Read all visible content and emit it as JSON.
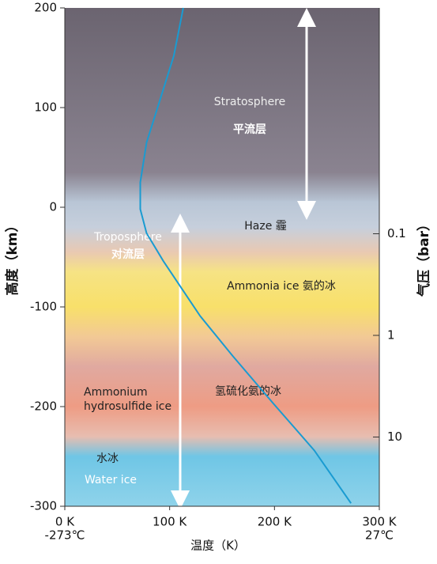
{
  "chart_data": {
    "type": "line",
    "xlabel": "温度（K）",
    "ylabel": "高度（km）",
    "y2label": "气压（bar）",
    "xlim": [
      0,
      300
    ],
    "xticks": [
      {
        "value": 0,
        "label": "0 K"
      },
      {
        "value": 100,
        "label": "100 K"
      },
      {
        "value": 200,
        "label": "200 K"
      },
      {
        "value": 300,
        "label": "300 K"
      }
    ],
    "x2ticks": [
      {
        "value": 0,
        "label": "-273℃"
      },
      {
        "value": 300,
        "label": "27℃"
      }
    ],
    "ylim": [
      -300,
      200
    ],
    "yticks": [
      -300,
      -200,
      -100,
      0,
      100,
      200
    ],
    "y2lim": [
      48,
      0.0006
    ],
    "y2scale": "log",
    "y2ticks": [
      0.1,
      1,
      10
    ],
    "series": [
      {
        "color": "#1a9bd1",
        "x": [
          113,
          104,
          90,
          78,
          72,
          72,
          78,
          94,
          129,
          160,
          199,
          238,
          273
        ],
        "values": [
          200,
          152,
          105,
          65,
          25,
          -2,
          -26,
          -54,
          -109,
          -149,
          -197,
          -244,
          -297
        ]
      }
    ],
    "annotations": [
      "Stratosphere",
      "平流层",
      "Troposphere",
      "对流层",
      "Haze 霾",
      "Ammonia ice 氨的冰",
      "Ammonium",
      "hydrosulfide ice",
      "氢硫化氨的冰",
      "水冰",
      "Water ice"
    ]
  }
}
